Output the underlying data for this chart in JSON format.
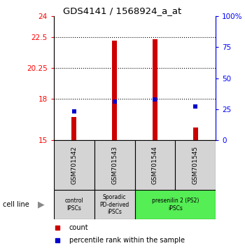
{
  "title": "GDS4141 / 1568924_a_at",
  "samples": [
    "GSM701542",
    "GSM701543",
    "GSM701544",
    "GSM701545"
  ],
  "bar_bottoms": [
    15,
    15,
    15,
    15
  ],
  "bar_tops": [
    16.7,
    22.2,
    22.3,
    15.9
  ],
  "blue_dots_pct": [
    23,
    31,
    33,
    27
  ],
  "ylim_left": [
    15,
    24
  ],
  "ylim_right": [
    0,
    100
  ],
  "yticks_left": [
    15,
    18,
    20.25,
    22.5,
    24
  ],
  "yticks_right": [
    0,
    25,
    50,
    75,
    100
  ],
  "ytick_labels_left": [
    "15",
    "18",
    "20.25",
    "22.5",
    "24"
  ],
  "ytick_labels_right": [
    "0",
    "25",
    "50",
    "75",
    "100%"
  ],
  "hlines": [
    18,
    20.25,
    22.5
  ],
  "bar_color": "#cc0000",
  "dot_color": "#0000cc",
  "groups": [
    {
      "label": "control\nIPSCs",
      "cols": [
        0
      ],
      "color": "#d4d4d4"
    },
    {
      "label": "Sporadic\nPD-derived\niPSCs",
      "cols": [
        1
      ],
      "color": "#d4d4d4"
    },
    {
      "label": "presenilin 2 (PS2)\niPSCs",
      "cols": [
        2,
        3
      ],
      "color": "#55ee55"
    }
  ],
  "cell_line_label": "cell line",
  "legend_items": [
    "count",
    "percentile rank within the sample"
  ],
  "legend_colors": [
    "#cc0000",
    "#0000cc"
  ]
}
